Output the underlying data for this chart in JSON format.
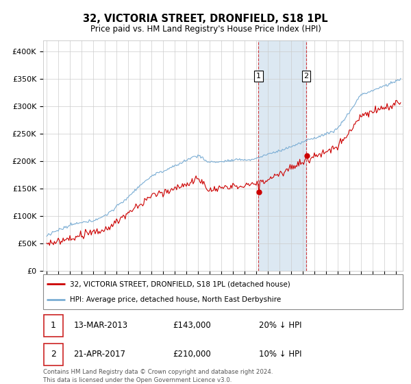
{
  "title": "32, VICTORIA STREET, DRONFIELD, S18 1PL",
  "subtitle": "Price paid vs. HM Land Registry's House Price Index (HPI)",
  "ylim": [
    0,
    420000
  ],
  "yticks": [
    0,
    50000,
    100000,
    150000,
    200000,
    250000,
    300000,
    350000,
    400000
  ],
  "line1_label": "32, VICTORIA STREET, DRONFIELD, S18 1PL (detached house)",
  "line2_label": "HPI: Average price, detached house, North East Derbyshire",
  "line1_color": "#cc0000",
  "line2_color": "#7aadd4",
  "transaction1": {
    "label": "1",
    "date": "13-MAR-2013",
    "price": "£143,000",
    "hpi": "20% ↓ HPI",
    "year": 2013.21
  },
  "transaction2": {
    "label": "2",
    "date": "21-APR-2017",
    "price": "£210,000",
    "hpi": "10% ↓ HPI",
    "year": 2017.3
  },
  "footer": "Contains HM Land Registry data © Crown copyright and database right 2024.\nThis data is licensed under the Open Government Licence v3.0.",
  "background_color": "#ffffff",
  "grid_color": "#cccccc",
  "shaded_region_color": "#d6e4f0",
  "xlim_start": 1994.7,
  "xlim_end": 2025.6,
  "xtick_start": 1995,
  "xtick_end": 2025
}
